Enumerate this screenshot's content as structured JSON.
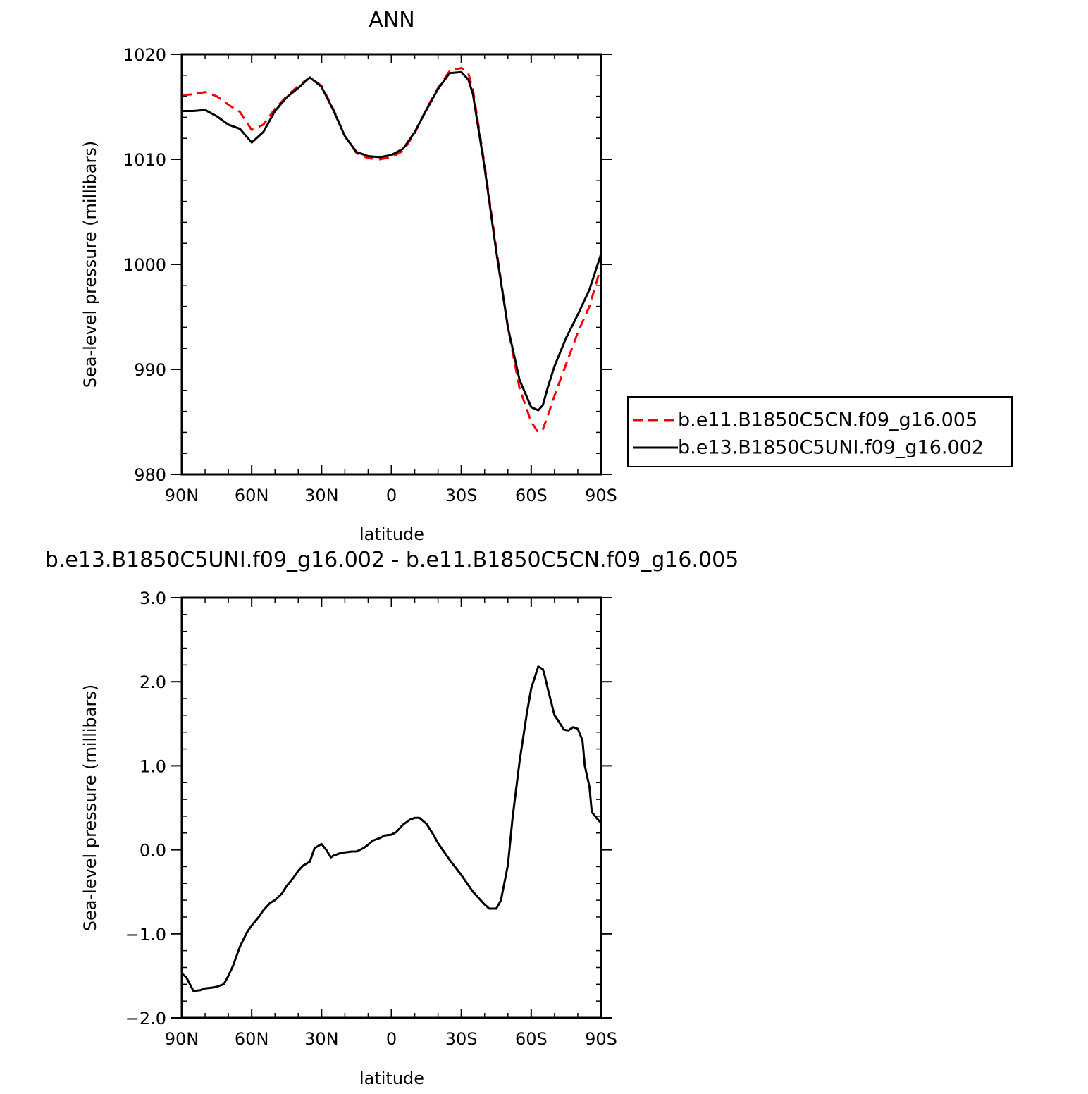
{
  "chart_data": [
    {
      "type": "line",
      "title": "ANN",
      "xlabel": "latitude",
      "ylabel": "Sea-level pressure (millibars)",
      "xlim": [
        90,
        -90
      ],
      "ylim": [
        980,
        1020
      ],
      "xticks": [
        90,
        60,
        30,
        0,
        -30,
        -60,
        -90
      ],
      "xtick_labels": [
        "90N",
        "60N",
        "30N",
        "0",
        "30S",
        "60S",
        "90S"
      ],
      "yticks": [
        980,
        990,
        1000,
        1010,
        1020
      ],
      "ytick_labels": [
        "980",
        "990",
        "1000",
        "1010",
        "1020"
      ],
      "legend_position": "right",
      "series": [
        {
          "name": "b.e11.B1850C5CN.f09_g16.005",
          "color": "#ff0000",
          "dash": "dashed",
          "x": [
            90,
            85,
            80,
            75,
            70,
            65,
            60,
            55,
            50,
            45,
            40,
            35,
            30,
            25,
            20,
            15,
            10,
            5,
            0,
            -5,
            -10,
            -15,
            -20,
            -25,
            -30,
            -33,
            -35,
            -40,
            -45,
            -50,
            -55,
            -60,
            -63,
            -65,
            -67,
            -70,
            -75,
            -80,
            -85,
            -90
          ],
          "values": [
            1016.1,
            1016.2,
            1016.4,
            1016.0,
            1015.2,
            1014.5,
            1012.8,
            1013.3,
            1014.8,
            1016.0,
            1017.0,
            1017.8,
            1017.0,
            1014.8,
            1012.2,
            1010.6,
            1010.1,
            1010.0,
            1010.2,
            1010.8,
            1012.5,
            1014.8,
            1016.8,
            1018.4,
            1018.7,
            1018.2,
            1016.6,
            1009.5,
            1001.5,
            994.0,
            988.2,
            985.0,
            984.0,
            984.3,
            985.5,
            987.5,
            990.5,
            993.5,
            996.0,
            999.8
          ]
        },
        {
          "name": "b.e13.B1850C5UNI.f09_g16.002",
          "color": "#000000",
          "dash": "solid",
          "x": [
            90,
            85,
            80,
            75,
            70,
            65,
            60,
            55,
            50,
            45,
            40,
            35,
            30,
            25,
            20,
            15,
            10,
            5,
            0,
            -5,
            -10,
            -15,
            -20,
            -25,
            -30,
            -33,
            -35,
            -40,
            -45,
            -50,
            -55,
            -60,
            -63,
            -65,
            -67,
            -70,
            -75,
            -80,
            -85,
            -90
          ],
          "values": [
            1014.6,
            1014.6,
            1014.7,
            1014.1,
            1013.3,
            1012.9,
            1011.6,
            1012.6,
            1014.6,
            1015.9,
            1016.8,
            1017.8,
            1016.9,
            1014.7,
            1012.2,
            1010.7,
            1010.3,
            1010.2,
            1010.4,
            1011.0,
            1012.6,
            1014.7,
            1016.7,
            1018.2,
            1018.3,
            1017.6,
            1016.2,
            1009.2,
            1001.2,
            994.0,
            989.0,
            986.4,
            986.1,
            986.6,
            988.2,
            990.3,
            993.0,
            995.2,
            997.6,
            1001.0
          ]
        }
      ]
    },
    {
      "type": "line",
      "title": "b.e13.B1850C5UNI.f09_g16.002 - b.e11.B1850C5CN.f09_g16.005",
      "xlabel": "latitude",
      "ylabel": "Sea-level pressure (millibars)",
      "xlim": [
        90,
        -90
      ],
      "ylim": [
        -2.0,
        3.0
      ],
      "xticks": [
        90,
        60,
        30,
        0,
        -30,
        -60,
        -90
      ],
      "xtick_labels": [
        "90N",
        "60N",
        "30N",
        "0",
        "30S",
        "60S",
        "90S"
      ],
      "yticks": [
        -2.0,
        -1.0,
        0.0,
        1.0,
        2.0,
        3.0
      ],
      "ytick_labels": [
        "−2.0",
        "−1.0",
        "0.0",
        "1.0",
        "2.0",
        "3.0"
      ],
      "series": [
        {
          "color": "#000000",
          "dash": "solid",
          "x": [
            90,
            88,
            85,
            82,
            80,
            77,
            75,
            72,
            70,
            68,
            65,
            62,
            60,
            57,
            55,
            52,
            50,
            47,
            45,
            42,
            40,
            38,
            35,
            33,
            30,
            28,
            26,
            25,
            22,
            20,
            17,
            15,
            12,
            10,
            8,
            5,
            3,
            0,
            -2,
            -5,
            -8,
            -10,
            -12,
            -15,
            -18,
            -20,
            -25,
            -30,
            -35,
            -40,
            -42,
            -45,
            -47,
            -50,
            -52,
            -55,
            -58,
            -60,
            -63,
            -65,
            -66,
            -67,
            -70,
            -72,
            -74,
            -76,
            -78,
            -80,
            -82,
            -83,
            -85,
            -86,
            -88,
            -90
          ],
          "values": [
            -1.47,
            -1.52,
            -1.68,
            -1.67,
            -1.65,
            -1.64,
            -1.63,
            -1.6,
            -1.5,
            -1.38,
            -1.15,
            -0.98,
            -0.9,
            -0.8,
            -0.72,
            -0.63,
            -0.6,
            -0.52,
            -0.43,
            -0.33,
            -0.25,
            -0.19,
            -0.14,
            0.02,
            0.07,
            0.0,
            -0.09,
            -0.07,
            -0.04,
            -0.03,
            -0.02,
            -0.02,
            0.02,
            0.06,
            0.11,
            0.14,
            0.17,
            0.18,
            0.21,
            0.3,
            0.36,
            0.38,
            0.38,
            0.31,
            0.18,
            0.08,
            -0.12,
            -0.3,
            -0.5,
            -0.65,
            -0.7,
            -0.7,
            -0.6,
            -0.18,
            0.38,
            1.05,
            1.6,
            1.92,
            2.18,
            2.15,
            2.05,
            1.93,
            1.6,
            1.52,
            1.43,
            1.42,
            1.46,
            1.44,
            1.3,
            1.0,
            0.75,
            0.45,
            0.38,
            0.32
          ]
        }
      ]
    }
  ]
}
